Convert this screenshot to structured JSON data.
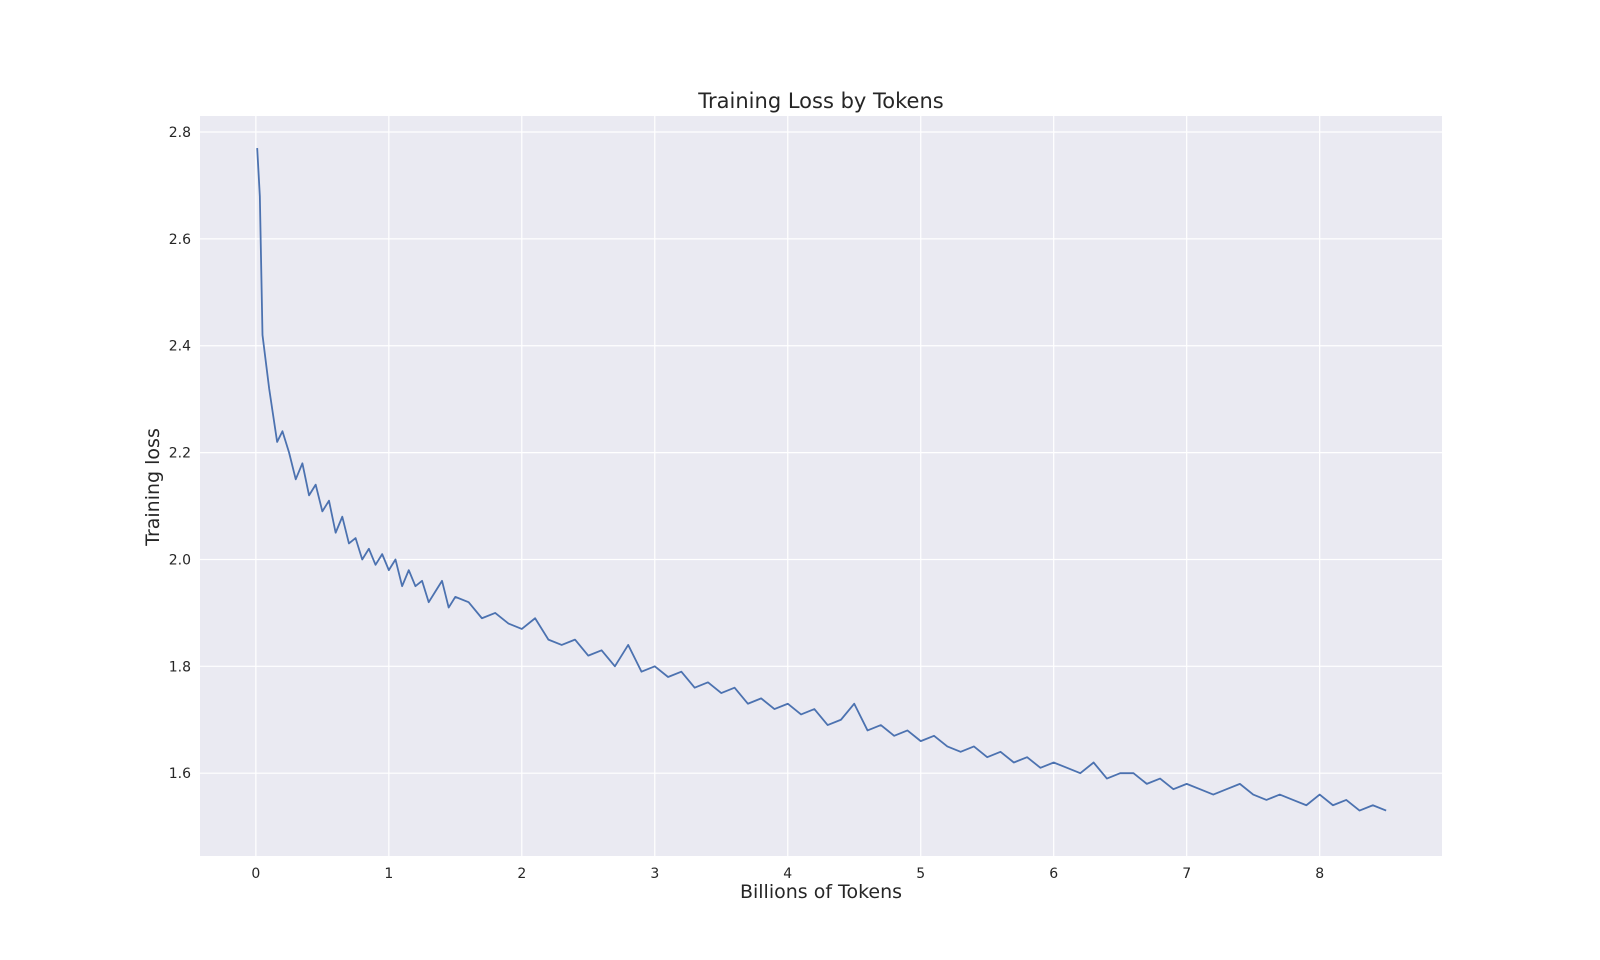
{
  "chart_data": {
    "type": "line",
    "title": "Training Loss by Tokens",
    "xlabel": "Billions of Tokens",
    "ylabel": "Training loss",
    "xlim": [
      -0.42,
      8.92
    ],
    "ylim": [
      1.445,
      2.83
    ],
    "xticks": [
      0,
      1,
      2,
      3,
      4,
      5,
      6,
      7,
      8
    ],
    "xtick_labels": [
      "0",
      "1",
      "2",
      "3",
      "4",
      "5",
      "6",
      "7",
      "8"
    ],
    "yticks": [
      1.6,
      1.8,
      2.0,
      2.2,
      2.4,
      2.6,
      2.8
    ],
    "ytick_labels": [
      "1.6",
      "1.8",
      "2.0",
      "2.2",
      "2.4",
      "2.6",
      "2.8"
    ],
    "grid": true,
    "background": "#eaeaf2",
    "grid_color": "#ffffff",
    "line_color": "#4c72b0",
    "series": [
      {
        "x": [
          0.01,
          0.03,
          0.05,
          0.08,
          0.1,
          0.13,
          0.16,
          0.2,
          0.25,
          0.3,
          0.35,
          0.4,
          0.45,
          0.5,
          0.55,
          0.6,
          0.65,
          0.7,
          0.75,
          0.8,
          0.85,
          0.9,
          0.95,
          1.0,
          1.05,
          1.1,
          1.15,
          1.2,
          1.25,
          1.3,
          1.35,
          1.4,
          1.45,
          1.5,
          1.6,
          1.7,
          1.8,
          1.9,
          2.0,
          2.1,
          2.2,
          2.3,
          2.4,
          2.5,
          2.6,
          2.7,
          2.8,
          2.9,
          3.0,
          3.1,
          3.2,
          3.3,
          3.4,
          3.5,
          3.6,
          3.7,
          3.8,
          3.9,
          4.0,
          4.1,
          4.2,
          4.3,
          4.4,
          4.5,
          4.6,
          4.7,
          4.8,
          4.9,
          5.0,
          5.1,
          5.2,
          5.3,
          5.4,
          5.5,
          5.6,
          5.7,
          5.8,
          5.9,
          6.0,
          6.1,
          6.2,
          6.3,
          6.4,
          6.5,
          6.6,
          6.7,
          6.8,
          6.9,
          7.0,
          7.1,
          7.2,
          7.3,
          7.4,
          7.5,
          7.6,
          7.7,
          7.8,
          7.9,
          8.0,
          8.1,
          8.2,
          8.3,
          8.4,
          8.5
        ],
        "y": [
          2.77,
          2.68,
          2.42,
          2.36,
          2.32,
          2.27,
          2.22,
          2.24,
          2.2,
          2.15,
          2.18,
          2.12,
          2.14,
          2.09,
          2.11,
          2.05,
          2.08,
          2.03,
          2.04,
          2.0,
          2.02,
          1.99,
          2.01,
          1.98,
          2.0,
          1.95,
          1.98,
          1.95,
          1.96,
          1.92,
          1.94,
          1.96,
          1.91,
          1.93,
          1.92,
          1.89,
          1.9,
          1.88,
          1.87,
          1.89,
          1.85,
          1.84,
          1.85,
          1.82,
          1.83,
          1.8,
          1.84,
          1.79,
          1.8,
          1.78,
          1.79,
          1.76,
          1.77,
          1.75,
          1.76,
          1.73,
          1.74,
          1.72,
          1.73,
          1.71,
          1.72,
          1.69,
          1.7,
          1.73,
          1.68,
          1.69,
          1.67,
          1.68,
          1.66,
          1.67,
          1.65,
          1.64,
          1.65,
          1.63,
          1.64,
          1.62,
          1.63,
          1.61,
          1.62,
          1.61,
          1.6,
          1.62,
          1.59,
          1.6,
          1.6,
          1.58,
          1.59,
          1.57,
          1.58,
          1.57,
          1.56,
          1.57,
          1.58,
          1.56,
          1.55,
          1.56,
          1.55,
          1.54,
          1.56,
          1.54,
          1.55,
          1.53,
          1.54,
          1.53
        ]
      }
    ]
  }
}
